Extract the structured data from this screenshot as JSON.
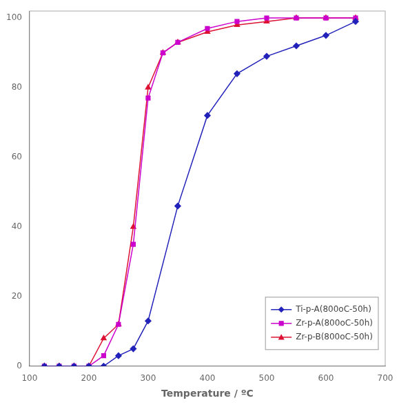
{
  "chart_data": {
    "type": "line",
    "xlabel": "Temperature / ºC",
    "series": [
      {
        "name": "Ti-p-A(800oC-50h)",
        "color": "#2222bb",
        "marker": "diamond",
        "x": [
          125,
          150,
          175,
          200,
          225,
          250,
          275,
          300,
          350,
          400,
          450,
          500,
          550,
          600,
          650
        ],
        "values": [
          0,
          0,
          0,
          0,
          0,
          3,
          5,
          13,
          46,
          72,
          84,
          89,
          92,
          95,
          99
        ]
      },
      {
        "name": "Zr-p-A(800oC-50h)",
        "color": "#cc00cc",
        "marker": "square",
        "x": [
          125,
          150,
          175,
          200,
          225,
          250,
          275,
          300,
          325,
          350,
          400,
          450,
          500,
          550,
          600,
          650
        ],
        "values": [
          0,
          0,
          0,
          0,
          3,
          12,
          35,
          77,
          90,
          93,
          97,
          99,
          100,
          100,
          100,
          100
        ]
      },
      {
        "name": "Zr-p-B(800oC-50h)",
        "color": "#dd1133",
        "marker": "triangle",
        "x": [
          125,
          150,
          175,
          200,
          225,
          250,
          275,
          300,
          325,
          350,
          400,
          450,
          500,
          550,
          600,
          650
        ],
        "values": [
          0,
          0,
          0,
          0,
          8,
          12,
          40,
          80,
          90,
          93,
          96,
          98,
          99,
          100,
          100,
          100
        ]
      }
    ],
    "xlim": [
      100,
      700
    ],
    "ylim": [
      0,
      102
    ],
    "xticks": [
      100,
      200,
      300,
      400,
      500,
      600,
      700
    ],
    "yticks": [
      0,
      20,
      40,
      60,
      80,
      100
    ],
    "grid": false,
    "legend": "lower right"
  }
}
